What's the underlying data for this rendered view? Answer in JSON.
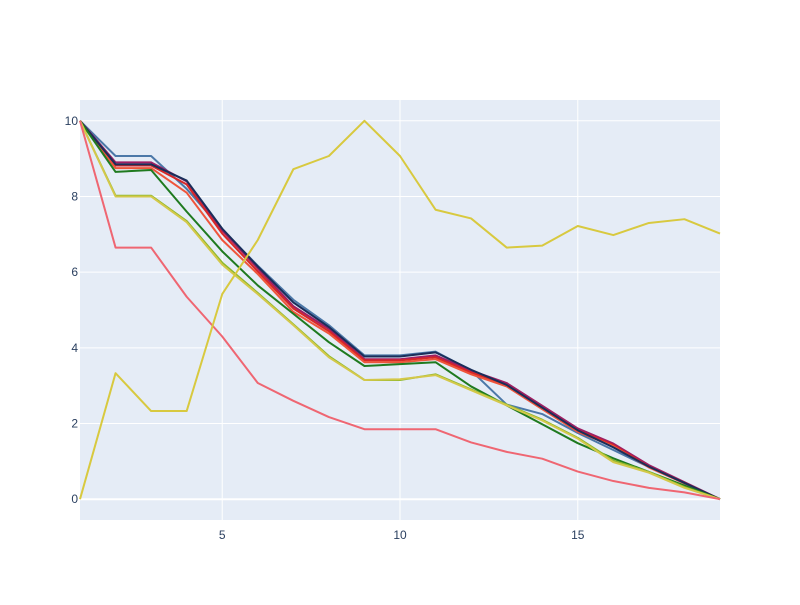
{
  "chart_data": {
    "type": "line",
    "title": "",
    "xlabel": "",
    "ylabel": "",
    "xlim": [
      1,
      19
    ],
    "ylim": [
      -0.55,
      10.55
    ],
    "x_ticks": [
      5,
      10,
      15
    ],
    "y_ticks": [
      0,
      2,
      4,
      6,
      8,
      10
    ],
    "grid": true,
    "legend": "none",
    "x": [
      1,
      2,
      3,
      4,
      5,
      6,
      7,
      8,
      9,
      10,
      11,
      12,
      13,
      14,
      15,
      16,
      17,
      18,
      19
    ],
    "series": [
      {
        "color": "#4c78a8",
        "values": [
          10,
          9.07,
          9.07,
          8.2,
          7.13,
          6.17,
          5.27,
          4.6,
          3.8,
          3.8,
          3.9,
          3.4,
          2.5,
          2.25,
          1.75,
          1.3,
          0.85,
          0.42,
          0.0
        ]
      },
      {
        "color": "#9e1f63",
        "values": [
          10,
          8.9,
          8.9,
          8.4,
          7.1,
          6.1,
          5.1,
          4.5,
          3.7,
          3.7,
          3.8,
          3.4,
          3.07,
          2.47,
          1.87,
          1.47,
          0.9,
          0.45,
          0.0
        ]
      },
      {
        "color": "#d62728",
        "values": [
          10,
          8.82,
          8.82,
          8.32,
          7.02,
          6.02,
          5.04,
          4.44,
          3.67,
          3.67,
          3.75,
          3.35,
          3.02,
          2.42,
          1.82,
          1.43,
          0.86,
          0.43,
          0.0
        ]
      },
      {
        "color": "#ef553b",
        "values": [
          10,
          8.75,
          8.75,
          8.1,
          6.85,
          5.95,
          4.95,
          4.38,
          3.62,
          3.62,
          3.7,
          3.3,
          2.98,
          2.38,
          1.78,
          1.4,
          0.84,
          0.42,
          0.0
        ]
      },
      {
        "color": "#1a2e5a",
        "values": [
          10,
          8.85,
          8.85,
          8.42,
          7.15,
          6.15,
          5.2,
          4.55,
          3.77,
          3.77,
          3.88,
          3.42,
          3.02,
          2.42,
          1.82,
          1.37,
          0.86,
          0.43,
          0.0
        ]
      },
      {
        "color": "#1f7a1f",
        "values": [
          10,
          8.65,
          8.7,
          7.6,
          6.55,
          5.65,
          4.9,
          4.15,
          3.52,
          3.57,
          3.62,
          2.98,
          2.48,
          1.98,
          1.48,
          1.08,
          0.72,
          0.36,
          0.0
        ]
      },
      {
        "color": "#8cb82b",
        "values": [
          10,
          8.02,
          8.02,
          7.35,
          6.25,
          5.45,
          4.62,
          3.78,
          3.15,
          3.15,
          3.3,
          2.9,
          2.5,
          2.1,
          1.62,
          1.02,
          0.72,
          0.32,
          0.0
        ]
      },
      {
        "color": "#d4c84a",
        "values": [
          10,
          8.0,
          8.0,
          7.32,
          6.2,
          5.42,
          4.6,
          3.75,
          3.15,
          3.17,
          3.28,
          2.88,
          2.48,
          2.08,
          1.6,
          0.98,
          0.7,
          0.3,
          0.0
        ]
      },
      {
        "color": "#ef6672",
        "values": [
          10,
          6.65,
          6.65,
          5.35,
          4.3,
          3.07,
          2.6,
          2.17,
          1.85,
          1.85,
          1.85,
          1.5,
          1.25,
          1.07,
          0.73,
          0.48,
          0.3,
          0.18,
          0.0
        ]
      },
      {
        "color": "#d8c93f",
        "values": [
          0,
          3.33,
          2.33,
          2.33,
          5.42,
          6.85,
          8.72,
          9.07,
          10,
          9.07,
          7.65,
          7.42,
          6.65,
          6.7,
          7.22,
          6.98,
          7.3,
          7.4,
          7.02
        ]
      }
    ]
  }
}
